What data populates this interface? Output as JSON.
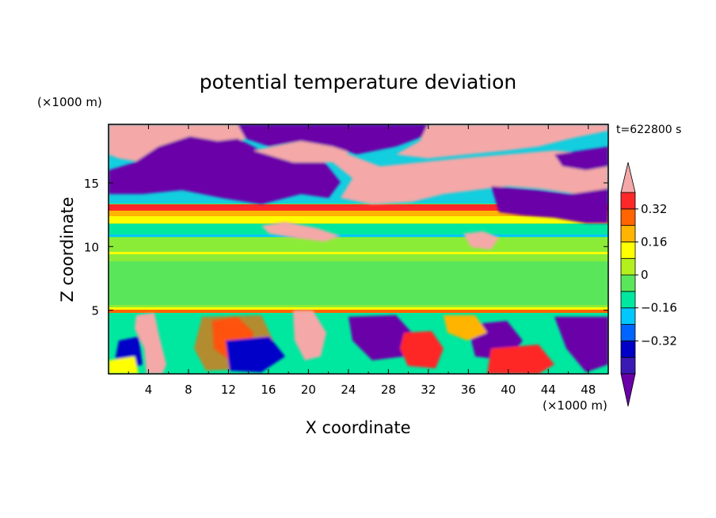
{
  "chart_data": {
    "type": "heatmap",
    "title": "potential temperature deviation",
    "xlabel": "X coordinate",
    "ylabel": "Z coordinate",
    "x_unit": "(×1000 m)",
    "y_unit": "(×1000 m)",
    "time_label": "t=622800 s",
    "xlim": [
      0,
      50
    ],
    "ylim": [
      0,
      19.6
    ],
    "x_ticks": [
      4,
      8,
      12,
      16,
      20,
      24,
      28,
      32,
      36,
      40,
      44,
      48
    ],
    "y_ticks": [
      5,
      10,
      15
    ],
    "colorbar": {
      "levels": [
        -0.4,
        -0.32,
        -0.24,
        -0.16,
        -0.08,
        0,
        0.08,
        0.16,
        0.24,
        0.32,
        0.4
      ],
      "tick_labels": [
        "0.32",
        "0.16",
        "0",
        "-0.16",
        "-0.32"
      ],
      "tick_values": [
        0.32,
        0.16,
        0,
        -0.16,
        -0.32
      ],
      "colors_bottom_to_top": [
        "#6a00a8",
        "#3a1ab5",
        "#0000c8",
        "#0064ff",
        "#00c8ff",
        "#00e8a0",
        "#5ae65a",
        "#b4f01e",
        "#ffff00",
        "#ffb400",
        "#ff6400",
        "#ff2828",
        "#f4a8a8"
      ],
      "extend": "both"
    }
  }
}
